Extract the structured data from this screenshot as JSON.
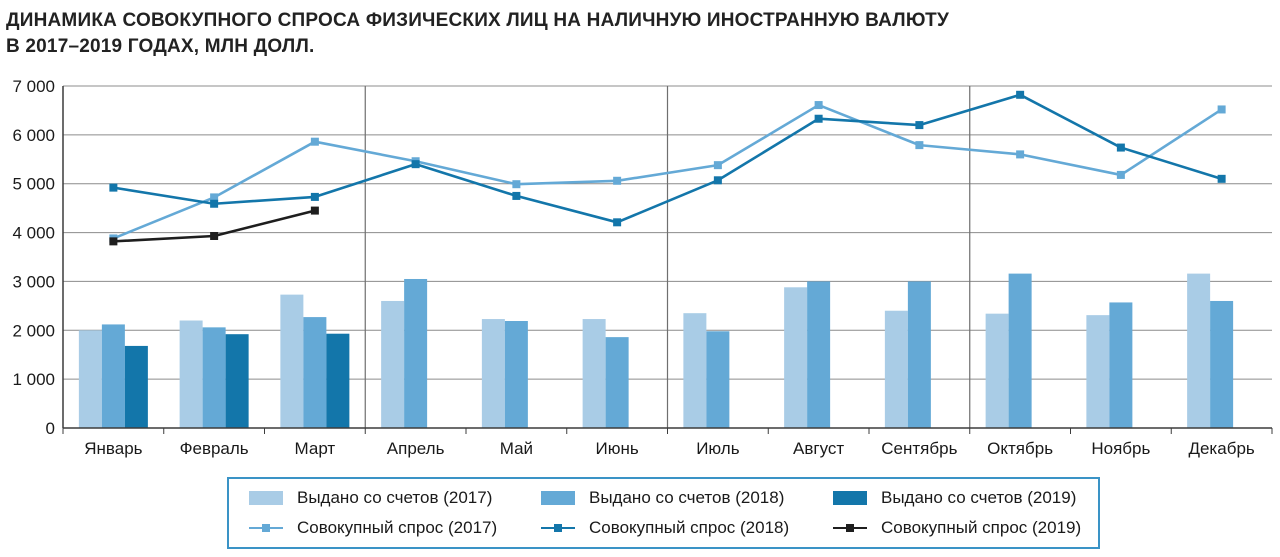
{
  "title_lines": [
    "ДИНАМИКА СОВОКУПНОГО СПРОСА ФИЗИЧЕСКИХ ЛИЦ НА НАЛИЧНУЮ ИНОСТРАННУЮ ВАЛЮТУ",
    "В 2017–2019 ГОДАХ, МЛН ДОЛЛ."
  ],
  "chart_data": {
    "type": "bar",
    "title": "ДИНАМИКА СОВОКУПНОГО СПРОСА ФИЗИЧЕСКИХ ЛИЦ НА НАЛИЧНУЮ ИНОСТРАННУЮ ВАЛЮТУ В 2017–2019 ГОДАХ, МЛН ДОЛЛ.",
    "categories": [
      "Январь",
      "Февраль",
      "Март",
      "Апрель",
      "Май",
      "Июнь",
      "Июль",
      "Август",
      "Сентябрь",
      "Октябрь",
      "Ноябрь",
      "Декабрь"
    ],
    "ylim": [
      0,
      7000
    ],
    "yticks": [
      0,
      1000,
      2000,
      3000,
      4000,
      5000,
      6000,
      7000
    ],
    "ytick_labels": [
      "0",
      "1 000",
      "2 000",
      "3 000",
      "4 000",
      "5 000",
      "6 000",
      "7 000"
    ],
    "grid": true,
    "legend_position": "bottom",
    "bar_series": [
      {
        "name": "Выдано со счетов (2017)",
        "color": "#a9cce6",
        "values": [
          2000,
          2200,
          2730,
          2600,
          2230,
          2230,
          2350,
          2880,
          2400,
          2340,
          2310,
          3160
        ]
      },
      {
        "name": "Выдано со счетов (2018)",
        "color": "#64a9d6",
        "values": [
          2120,
          2060,
          2270,
          3050,
          2190,
          1860,
          1980,
          3000,
          3000,
          3160,
          2570,
          2600
        ]
      },
      {
        "name": "Выдано со счетов (2019)",
        "color": "#1376aa",
        "values": [
          1680,
          1920,
          1930,
          null,
          null,
          null,
          null,
          null,
          null,
          null,
          null,
          null
        ]
      }
    ],
    "line_series": [
      {
        "name": "Совокупный спрос (2017)",
        "color": "#64a9d6",
        "values": [
          3880,
          4720,
          5860,
          5460,
          4990,
          5060,
          5380,
          6610,
          5790,
          5600,
          5180,
          6520
        ]
      },
      {
        "name": "Совокупный спрос (2018)",
        "color": "#1376aa",
        "values": [
          4920,
          4590,
          4730,
          5400,
          4750,
          4210,
          5070,
          6330,
          6200,
          6820,
          5740,
          5100
        ]
      },
      {
        "name": "Совокупный спрос (2019)",
        "color": "#1e1e1e",
        "values": [
          3820,
          3930,
          4450,
          null,
          null,
          null,
          null,
          null,
          null,
          null,
          null,
          null
        ]
      }
    ],
    "quarter_separators_after": [
      3,
      6,
      9
    ]
  },
  "legend": [
    {
      "label": "Выдано со счетов (2017)",
      "kind": "bar",
      "color": "#a9cce6"
    },
    {
      "label": "Выдано со счетов (2018)",
      "kind": "bar",
      "color": "#64a9d6"
    },
    {
      "label": "Выдано со счетов (2019)",
      "kind": "bar",
      "color": "#1376aa"
    },
    {
      "label": "Совокупный спрос (2017)",
      "kind": "line",
      "color": "#64a9d6"
    },
    {
      "label": "Совокупный спрос (2018)",
      "kind": "line",
      "color": "#1376aa"
    },
    {
      "label": "Совокупный спрос (2019)",
      "kind": "line",
      "color": "#1e1e1e"
    }
  ]
}
